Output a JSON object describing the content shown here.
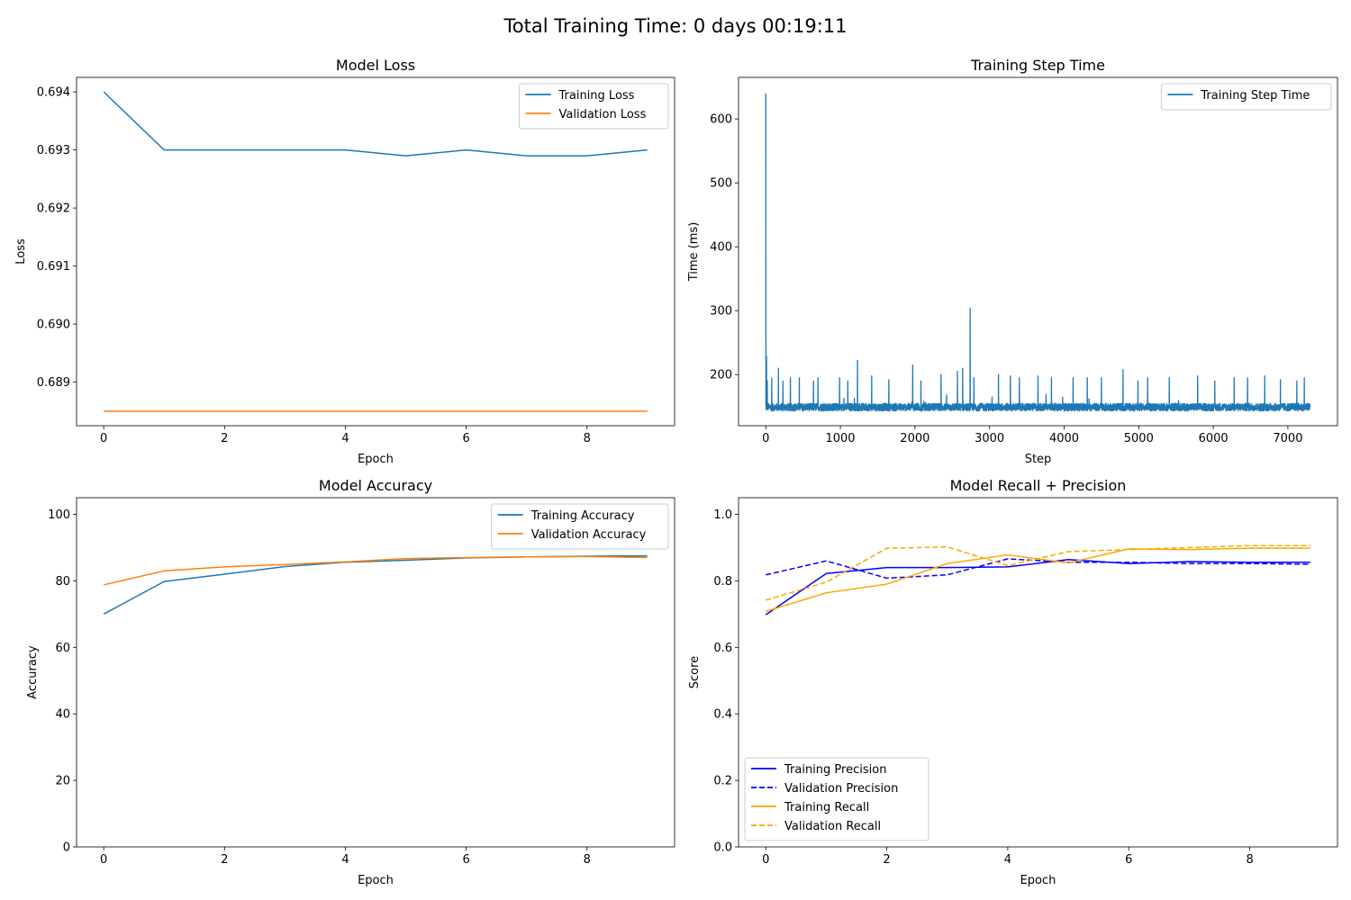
{
  "suptitle": "Total Training Time: 0 days 00:19:11",
  "colors": {
    "tab_blue": "#1f77b4",
    "tab_orange": "#ff7f0e",
    "blue": "#0000ff",
    "orange": "#ffa500"
  },
  "chart_data": [
    {
      "id": "loss",
      "type": "line",
      "title": "Model Loss",
      "xlabel": "Epoch",
      "ylabel": "Loss",
      "xlim": [
        -0.45,
        9.45
      ],
      "ylim": [
        0.68825,
        0.69425
      ],
      "xticks": [
        0,
        2,
        4,
        6,
        8
      ],
      "xtick_labels": [
        "0",
        "2",
        "4",
        "6",
        "8"
      ],
      "yticks": [
        0.689,
        0.69,
        0.691,
        0.692,
        0.693,
        0.694
      ],
      "ytick_labels": [
        "0.689",
        "0.690",
        "0.691",
        "0.692",
        "0.693",
        "0.694"
      ],
      "legend_position": "top-right",
      "x": [
        0,
        1,
        2,
        3,
        4,
        5,
        6,
        7,
        8,
        9
      ],
      "series": [
        {
          "name": "Training Loss",
          "color": "#1f77b4",
          "dash": false,
          "values": [
            0.694,
            0.693,
            0.693,
            0.693,
            0.693,
            0.6929,
            0.693,
            0.6929,
            0.6929,
            0.693
          ]
        },
        {
          "name": "Validation Loss",
          "color": "#ff7f0e",
          "dash": false,
          "values": [
            0.6885,
            0.6885,
            0.6885,
            0.6885,
            0.6885,
            0.6885,
            0.6885,
            0.6885,
            0.6885,
            0.6885
          ]
        }
      ]
    },
    {
      "id": "steptime",
      "type": "line",
      "title": "Training Step Time",
      "xlabel": "Step",
      "ylabel": "Time (ms)",
      "xlim": [
        -365,
        7665
      ],
      "ylim": [
        120,
        665
      ],
      "xticks": [
        0,
        1000,
        2000,
        3000,
        4000,
        5000,
        6000,
        7000
      ],
      "xtick_labels": [
        "0",
        "1000",
        "2000",
        "3000",
        "4000",
        "5000",
        "6000",
        "7000"
      ],
      "yticks": [
        200,
        300,
        400,
        500,
        600
      ],
      "ytick_labels": [
        "200",
        "300",
        "400",
        "500",
        "600"
      ],
      "legend_position": "top-right",
      "series": [
        {
          "name": "Training Step Time",
          "color": "#1f77b4",
          "num_steps": 7300,
          "baseline_range": [
            143,
            155
          ],
          "spikes": [
            [
              0,
              640
            ],
            [
              10,
              228
            ],
            [
              20,
              190
            ],
            [
              80,
              195
            ],
            [
              170,
              210
            ],
            [
              230,
              190
            ],
            [
              330,
              195
            ],
            [
              450,
              195
            ],
            [
              640,
              190
            ],
            [
              700,
              195
            ],
            [
              990,
              195
            ],
            [
              1100,
              190
            ],
            [
              1230,
              222
            ],
            [
              1420,
              198
            ],
            [
              1650,
              192
            ],
            [
              1970,
              215
            ],
            [
              2080,
              190
            ],
            [
              2350,
              200
            ],
            [
              2570,
              205
            ],
            [
              2640,
              210
            ],
            [
              2740,
              304
            ],
            [
              2790,
              195
            ],
            [
              3120,
              200
            ],
            [
              3280,
              198
            ],
            [
              3400,
              195
            ],
            [
              3650,
              198
            ],
            [
              3830,
              195
            ],
            [
              4120,
              195
            ],
            [
              4310,
              195
            ],
            [
              4500,
              195
            ],
            [
              4790,
              208
            ],
            [
              4990,
              190
            ],
            [
              5120,
              195
            ],
            [
              5410,
              195
            ],
            [
              5790,
              198
            ],
            [
              6020,
              190
            ],
            [
              6280,
              195
            ],
            [
              6460,
              195
            ],
            [
              6690,
              198
            ],
            [
              6900,
              192
            ],
            [
              7120,
              190
            ],
            [
              7220,
              195
            ]
          ]
        }
      ]
    },
    {
      "id": "accuracy",
      "type": "line",
      "title": "Model Accuracy",
      "xlabel": "Epoch",
      "ylabel": "Accuracy",
      "xlim": [
        -0.45,
        9.45
      ],
      "ylim": [
        0,
        105
      ],
      "xticks": [
        0,
        2,
        4,
        6,
        8
      ],
      "xtick_labels": [
        "0",
        "2",
        "4",
        "6",
        "8"
      ],
      "yticks": [
        0,
        20,
        40,
        60,
        80,
        100
      ],
      "ytick_labels": [
        "0",
        "20",
        "40",
        "60",
        "80",
        "100"
      ],
      "legend_position": "top-right",
      "x": [
        0,
        1,
        2,
        3,
        4,
        5,
        6,
        7,
        8,
        9
      ],
      "series": [
        {
          "name": "Training Accuracy",
          "color": "#1f77b4",
          "dash": false,
          "values": [
            70.0,
            79.8,
            82.0,
            84.3,
            85.6,
            86.2,
            86.9,
            87.2,
            87.4,
            87.5
          ]
        },
        {
          "name": "Validation Accuracy",
          "color": "#ff7f0e",
          "dash": false,
          "values": [
            78.8,
            83.0,
            84.2,
            84.9,
            85.7,
            86.7,
            87.0,
            87.2,
            87.3,
            87.0
          ]
        }
      ]
    },
    {
      "id": "recall_precision",
      "type": "line",
      "title": "Model Recall + Precision",
      "xlabel": "Epoch",
      "ylabel": "Score",
      "xlim": [
        -0.45,
        9.45
      ],
      "ylim": [
        0,
        1.05
      ],
      "xticks": [
        0,
        2,
        4,
        6,
        8
      ],
      "xtick_labels": [
        "0",
        "2",
        "4",
        "6",
        "8"
      ],
      "yticks": [
        0,
        0.2,
        0.4,
        0.6,
        0.8,
        1.0
      ],
      "ytick_labels": [
        "0.0",
        "0.2",
        "0.4",
        "0.6",
        "0.8",
        "1.0"
      ],
      "legend_position": "bottom-left",
      "x": [
        0,
        1,
        2,
        3,
        4,
        5,
        6,
        7,
        8,
        9
      ],
      "series": [
        {
          "name": "Training Precision",
          "color": "#0000ff",
          "dash": false,
          "values": [
            0.698,
            0.822,
            0.84,
            0.84,
            0.842,
            0.864,
            0.852,
            0.858,
            0.856,
            0.856
          ]
        },
        {
          "name": "Validation Precision",
          "color": "#0000ff",
          "dash": true,
          "values": [
            0.818,
            0.86,
            0.808,
            0.818,
            0.866,
            0.856,
            0.856,
            0.852,
            0.852,
            0.85
          ]
        },
        {
          "name": "Training Recall",
          "color": "#ffa500",
          "dash": false,
          "values": [
            0.708,
            0.764,
            0.79,
            0.852,
            0.878,
            0.854,
            0.896,
            0.894,
            0.898,
            0.898
          ]
        },
        {
          "name": "Validation Recall",
          "color": "#ffa500",
          "dash": true,
          "values": [
            0.742,
            0.796,
            0.898,
            0.902,
            0.846,
            0.888,
            0.894,
            0.9,
            0.906,
            0.906
          ]
        }
      ]
    }
  ]
}
